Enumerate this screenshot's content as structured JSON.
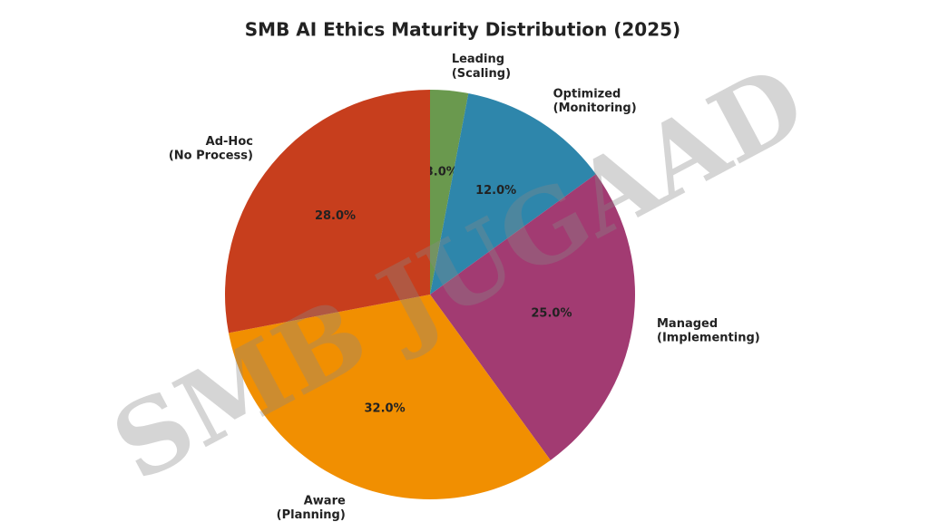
{
  "chart_data": {
    "type": "pie",
    "title": "SMB AI Ethics Maturity Distribution (2025)",
    "categories": [
      "Leading\n(Scaling)",
      "Optimized\n(Monitoring)",
      "Managed\n(Implementing)",
      "Aware\n(Planning)",
      "Ad-Hoc\n(No Process)"
    ],
    "values": [
      3,
      12,
      25,
      32,
      28
    ],
    "value_labels": [
      "3.0%",
      "12.0%",
      "25.0%",
      "32.0%",
      "28.0%"
    ],
    "colors": [
      "#6a994e",
      "#2e86ab",
      "#a23b72",
      "#f18f01",
      "#c73e1d"
    ],
    "watermark": "SMB JUGAAD"
  }
}
